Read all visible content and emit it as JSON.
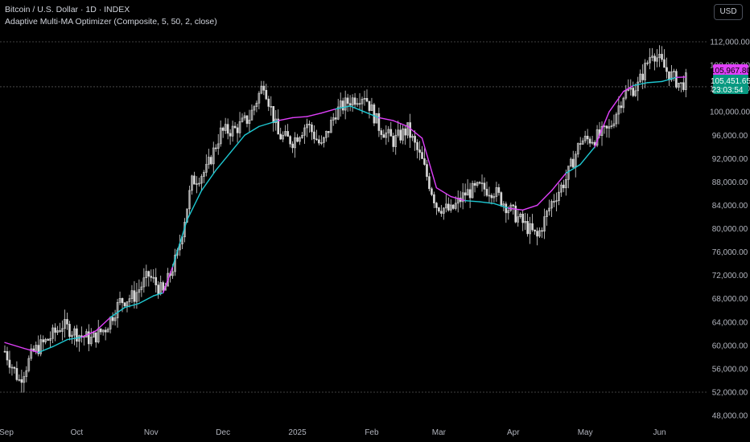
{
  "header": {
    "title": "Bitcoin / U.S. Dollar · 1D · INDEX",
    "subtitle": "Adaptive Multi-MA Optimizer (Composite, 5, 50, 2, close)"
  },
  "currency_button": "USD",
  "price_labels": {
    "ma_value": "105,967.80",
    "last_price": "105,451.65",
    "countdown": "23:03:54"
  },
  "colors": {
    "background": "#000000",
    "candle": "#d9d9d9",
    "ma_bull": "#1ec8d2",
    "ma_bear": "#e040fb",
    "ma_label": "#e040fb",
    "price_label": "#089981",
    "grid_dashed": "#555555",
    "axis_text": "#b2b5be"
  },
  "chart_data": {
    "type": "line",
    "title": "Bitcoin / U.S. Dollar · 1D · INDEX",
    "xlabel": "",
    "ylabel": "",
    "ylim": [
      46400,
      114800
    ],
    "y_ticks": [
      112000,
      108000,
      104000,
      100000,
      96000,
      92000,
      88000,
      84000,
      80000,
      76000,
      72000,
      68000,
      64000,
      60000,
      56000,
      52000,
      48000
    ],
    "y_tick_labels": [
      "112,000.00",
      "108,000.00",
      "104,000.00",
      "100,000.00",
      "96,000.00",
      "92,000.00",
      "88,000.00",
      "84,000.00",
      "80,000.00",
      "76,000.00",
      "72,000.00",
      "68,000.00",
      "64,000.00",
      "60,000.00",
      "56,000.00",
      "52,000.00",
      "48,000.00"
    ],
    "x_ticks": [
      "Sep",
      "Oct",
      "Nov",
      "Dec",
      "2025",
      "Feb",
      "Mar",
      "Apr",
      "May",
      "Jun"
    ],
    "x_tick_days": [
      0,
      30,
      61,
      91,
      122,
      153,
      181,
      212,
      242,
      273
    ],
    "reference_lines": [
      112000,
      104300,
      52000
    ],
    "price_series": {
      "name": "BTCUSD close",
      "x_days": [
        0,
        6,
        12,
        18,
        24,
        30,
        36,
        42,
        48,
        54,
        60,
        66,
        72,
        78,
        84,
        90,
        96,
        102,
        108,
        114,
        120,
        126,
        132,
        138,
        144,
        150,
        156,
        162,
        168,
        174,
        180,
        186,
        192,
        198,
        204,
        210,
        216,
        222,
        228,
        234,
        240,
        246,
        252,
        258,
        264,
        270,
        276,
        282,
        284
      ],
      "close": [
        59000,
        54000,
        59000,
        61000,
        63500,
        62000,
        61000,
        63000,
        67500,
        68500,
        72000,
        69000,
        75500,
        88000,
        90000,
        96500,
        97000,
        99000,
        105000,
        96000,
        95000,
        98000,
        94000,
        100000,
        102000,
        103000,
        97500,
        95000,
        97000,
        91500,
        84000,
        83000,
        86000,
        87000,
        86500,
        83500,
        81000,
        78500,
        84500,
        88500,
        95000,
        95500,
        97000,
        103000,
        104500,
        110500,
        107000,
        104500,
        105450
      ]
    },
    "series": [
      {
        "name": "",
        "x_days": [
          0,
          8,
          14,
          20,
          26,
          32,
          38,
          44,
          50,
          56,
          62,
          66,
          70,
          76,
          82,
          88,
          94,
          100,
          106,
          110,
          114,
          120,
          126,
          132,
          138,
          144,
          150,
          156,
          162,
          168,
          174,
          180,
          186,
          192,
          198,
          204,
          210,
          216,
          222,
          228,
          234,
          240,
          246,
          252,
          258,
          262,
          268,
          274,
          280,
          284
        ],
        "values": [
          60500,
          59500,
          58800,
          59800,
          61000,
          61400,
          62500,
          64800,
          66500,
          67200,
          68500,
          69000,
          73500,
          81500,
          86500,
          90000,
          93000,
          96000,
          97500,
          98000,
          98500,
          99000,
          99200,
          99800,
          100500,
          101000,
          100000,
          99000,
          98500,
          97500,
          95500,
          87000,
          85500,
          84800,
          84600,
          84300,
          83500,
          83200,
          84000,
          86500,
          89500,
          91000,
          94000,
          100000,
          103500,
          104500,
          105000,
          105200,
          105900,
          105968
        ]
      }
    ]
  }
}
